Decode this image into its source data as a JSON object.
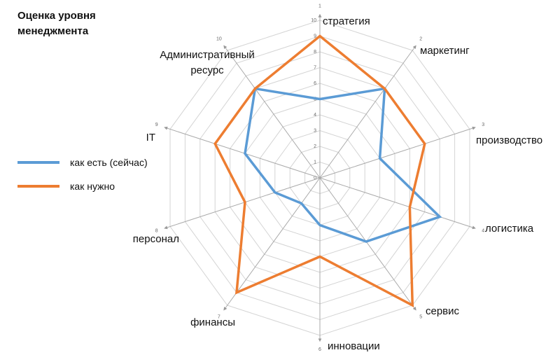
{
  "chart_data": {
    "type": "radar",
    "title": "Оценка уровня менеджмента",
    "categories": [
      "стратегия",
      "маркетинг",
      "производство",
      "логистика",
      "сервис",
      "инновации",
      "финансы",
      "персонал",
      "IT",
      "Административный ресурс"
    ],
    "axis_numbers": [
      1,
      2,
      3,
      4,
      5,
      6,
      7,
      8,
      9,
      10
    ],
    "series": [
      {
        "name": "как есть (сейчас)",
        "color": "#5b9bd5",
        "values": [
          5,
          7,
          4,
          8,
          5,
          3,
          2,
          3,
          5,
          7
        ]
      },
      {
        "name": "как нужно",
        "color": "#ed7d31",
        "values": [
          9,
          7,
          7,
          6,
          10,
          5,
          9,
          5,
          7,
          7
        ]
      }
    ],
    "rlim": [
      0,
      10
    ],
    "rticks": [
      0,
      1,
      2,
      3,
      4,
      5,
      6,
      7,
      8,
      9,
      10
    ],
    "grid": true,
    "legend": "left"
  }
}
